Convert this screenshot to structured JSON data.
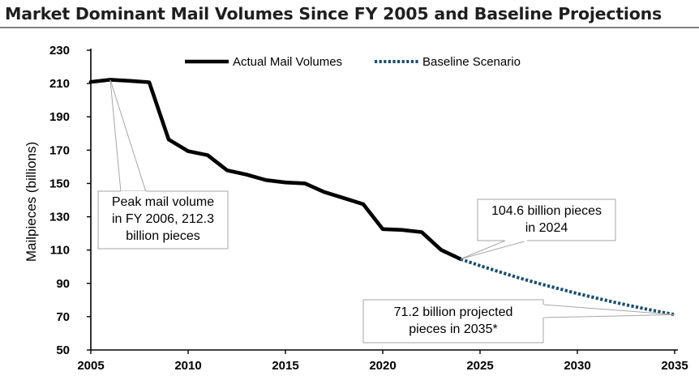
{
  "title": "Market Dominant Mail Volumes Since FY 2005 and Baseline Projections",
  "chart_data": {
    "type": "line",
    "title": "Market Dominant Mail Volumes Since FY 2005 and Baseline Projections",
    "xlabel": "",
    "ylabel": "Mailpieces (billions)",
    "xlim": [
      2005,
      2035
    ],
    "ylim": [
      50,
      230
    ],
    "xticks": [
      "2005",
      "2010",
      "2015",
      "2020",
      "2025",
      "2030",
      "2035"
    ],
    "yticks": [
      "50",
      "70",
      "90",
      "110",
      "130",
      "150",
      "170",
      "190",
      "210",
      "230"
    ],
    "series": [
      {
        "name": "Actual Mail Volumes",
        "color": "#000000",
        "style": "solid",
        "x": [
          2005,
          2006,
          2007,
          2008,
          2009,
          2010,
          2011,
          2012,
          2013,
          2014,
          2015,
          2016,
          2017,
          2018,
          2019,
          2020,
          2021,
          2022,
          2023,
          2024
        ],
        "values": [
          211.0,
          212.3,
          211.6,
          210.8,
          176.4,
          169.4,
          167.0,
          157.9,
          155.3,
          152.0,
          150.6,
          150.0,
          144.8,
          141.2,
          137.5,
          122.6,
          122.1,
          120.8,
          110.1,
          104.6
        ]
      },
      {
        "name": "Baseline Scenario",
        "color": "#1b4f6b",
        "style": "dotted",
        "x": [
          2024,
          2025,
          2026,
          2027,
          2028,
          2029,
          2030,
          2031,
          2032,
          2033,
          2034,
          2035
        ],
        "values": [
          104.6,
          100.6,
          96.9,
          93.3,
          90.0,
          86.9,
          83.9,
          81.1,
          78.4,
          75.9,
          73.5,
          71.2
        ]
      }
    ],
    "legend": {
      "position": "top-center",
      "items": [
        "Actual Mail Volumes",
        "Baseline Scenario"
      ]
    },
    "annotations": [
      {
        "lines": [
          "Peak mail volume",
          "in FY 2006, 212.3",
          "billion pieces"
        ],
        "target": [
          2006,
          212.3
        ]
      },
      {
        "lines": [
          "104.6 billion pieces",
          "in 2024"
        ],
        "target": [
          2024,
          104.6
        ]
      },
      {
        "lines": [
          "71.2 billion projected",
          "pieces in 2035*"
        ],
        "target": [
          2035,
          71.2
        ]
      }
    ]
  },
  "colors": {
    "actual": "#000000",
    "baseline": "#1b4f6b",
    "axis": "#000000",
    "callout_border": "#a6a6a6",
    "title_rule": "#7f7f7f"
  }
}
